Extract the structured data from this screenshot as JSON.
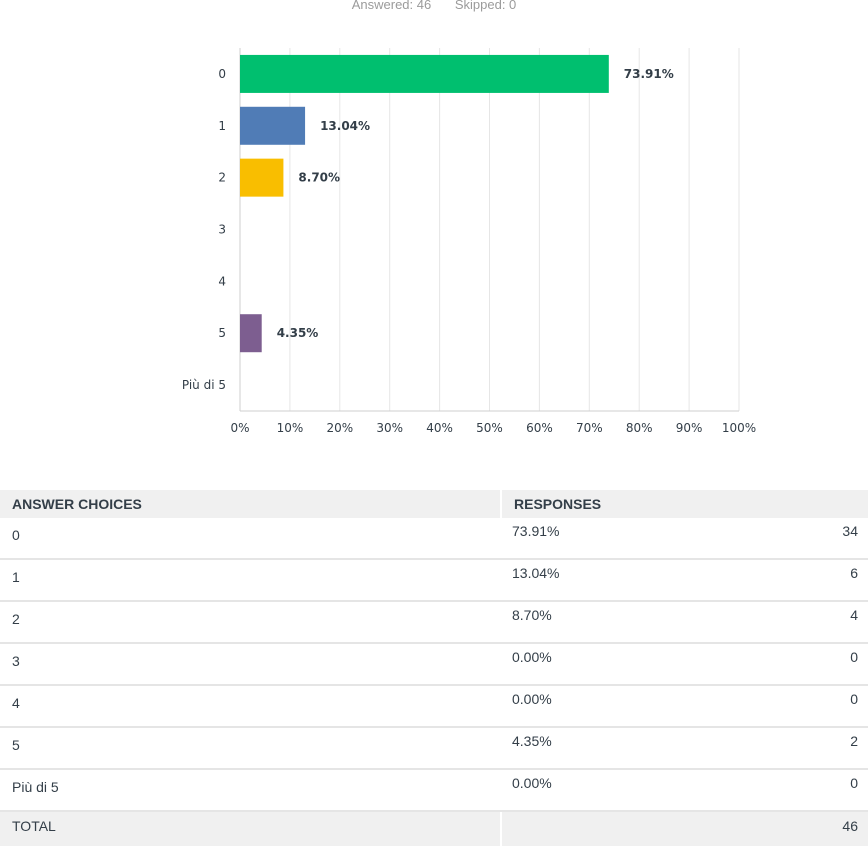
{
  "summary": {
    "answered": "Answered: 46",
    "skipped": "Skipped: 0"
  },
  "chart_data": {
    "type": "bar",
    "orientation": "horizontal",
    "categories": [
      "0",
      "1",
      "2",
      "3",
      "4",
      "5",
      "Più di 5"
    ],
    "values": [
      73.91,
      13.04,
      8.7,
      0,
      0,
      4.35,
      0
    ],
    "data_labels": [
      "73.91%",
      "13.04%",
      "8.70%",
      "",
      "",
      "4.35%",
      ""
    ],
    "colors": [
      "#00bf6f",
      "#507cb6",
      "#f9be00",
      "#6bc8cd",
      "#ff8b4f",
      "#7d5e90",
      "#d25f90"
    ],
    "xlim": [
      0,
      100
    ],
    "x_ticks": [
      "0%",
      "10%",
      "20%",
      "30%",
      "40%",
      "50%",
      "60%",
      "70%",
      "80%",
      "90%",
      "100%"
    ],
    "grid": true,
    "legend": "none"
  },
  "table": {
    "headers": {
      "choice": "ANSWER CHOICES",
      "responses": "RESPONSES"
    },
    "rows": [
      {
        "choice": "0",
        "percent": "73.91%",
        "count": "34"
      },
      {
        "choice": "1",
        "percent": "13.04%",
        "count": "6"
      },
      {
        "choice": "2",
        "percent": "8.70%",
        "count": "4"
      },
      {
        "choice": "3",
        "percent": "0.00%",
        "count": "0"
      },
      {
        "choice": "4",
        "percent": "0.00%",
        "count": "0"
      },
      {
        "choice": "5",
        "percent": "4.35%",
        "count": "2"
      },
      {
        "choice": "Più di 5",
        "percent": "0.00%",
        "count": "0"
      }
    ],
    "total": {
      "label": "TOTAL",
      "count": "46"
    }
  }
}
